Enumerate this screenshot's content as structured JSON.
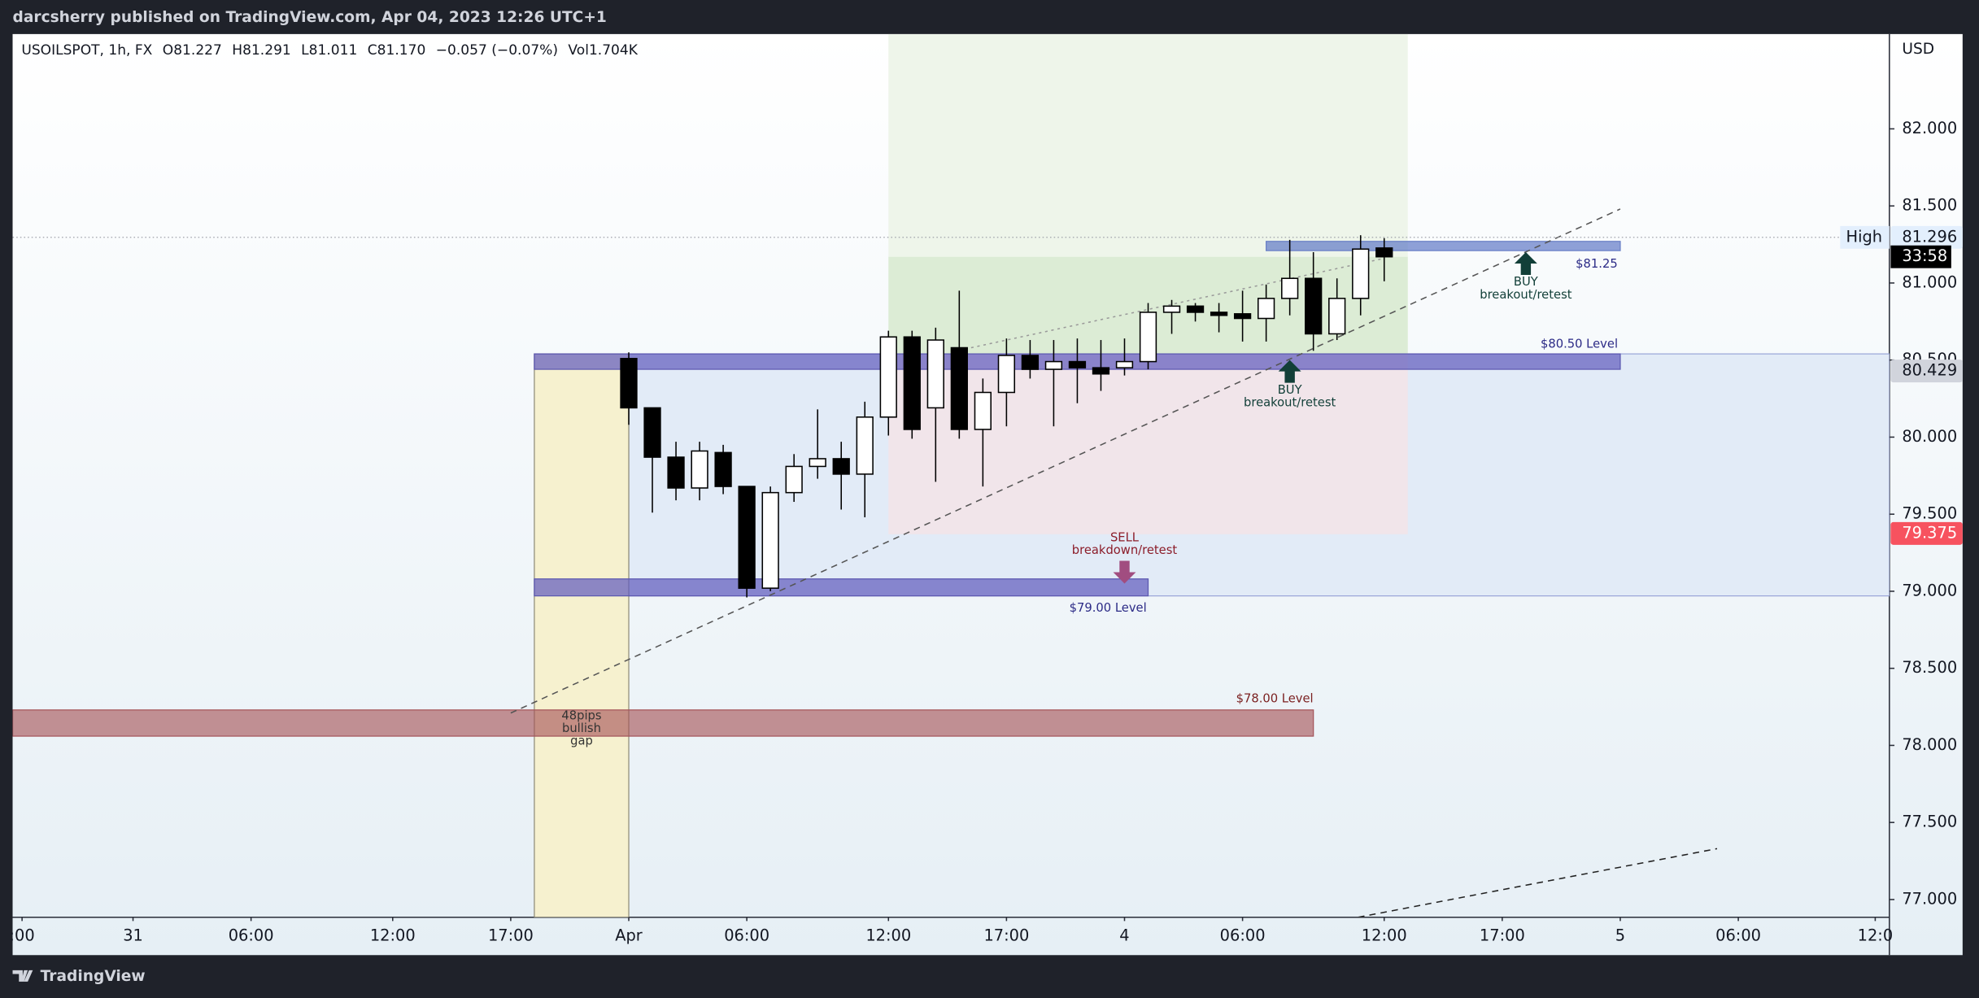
{
  "header": {
    "publisher": "darcsherry published on TradingView.com, Apr 04, 2023 12:26 UTC+1",
    "brand": "TradingView"
  },
  "chart_data": {
    "type": "candlestick",
    "symbol": "USOILSPOT, 1h, FX",
    "legend": [
      "O81.227",
      "H81.291",
      "L81.011",
      "C81.170",
      "−0.057 (−0.07%)",
      "Vol1.704K"
    ],
    "currency": "USD",
    "x": [
      0,
      1,
      2,
      3,
      4,
      5,
      6,
      7,
      8,
      9,
      10,
      11,
      12,
      13,
      14,
      15,
      16,
      17,
      18,
      19,
      20,
      21,
      22,
      23,
      24,
      25,
      26,
      27,
      28,
      29,
      30,
      31,
      32
    ],
    "open": [
      80.51,
      80.19,
      79.87,
      79.67,
      79.9,
      79.68,
      79.02,
      79.64,
      79.81,
      79.86,
      79.76,
      80.13,
      80.65,
      80.19,
      80.58,
      80.05,
      80.29,
      80.53,
      80.44,
      80.49,
      80.45,
      80.45,
      80.49,
      80.81,
      80.85,
      80.81,
      80.8,
      80.77,
      80.9,
      81.03,
      80.67,
      80.9,
      81.227
    ],
    "high": [
      80.55,
      80.19,
      79.97,
      79.97,
      79.95,
      79.68,
      79.68,
      79.89,
      80.18,
      79.97,
      80.23,
      80.69,
      80.69,
      80.71,
      80.95,
      80.38,
      80.64,
      80.63,
      80.63,
      80.64,
      80.63,
      80.64,
      80.87,
      80.89,
      80.87,
      80.87,
      80.95,
      80.99,
      81.28,
      81.2,
      81.03,
      81.31,
      81.291
    ],
    "low": [
      80.08,
      79.51,
      79.59,
      79.59,
      79.63,
      78.96,
      79.0,
      79.58,
      79.73,
      79.53,
      79.48,
      80.01,
      79.99,
      79.71,
      79.99,
      79.68,
      80.07,
      80.38,
      80.07,
      80.22,
      80.3,
      80.4,
      80.44,
      80.67,
      80.75,
      80.68,
      80.62,
      80.62,
      80.79,
      80.56,
      80.63,
      80.79,
      81.011
    ],
    "close": [
      80.19,
      79.87,
      79.67,
      79.91,
      79.68,
      79.02,
      79.64,
      79.81,
      79.86,
      79.76,
      80.13,
      80.65,
      80.05,
      80.63,
      80.05,
      80.29,
      80.53,
      80.44,
      80.49,
      80.45,
      80.41,
      80.49,
      80.81,
      80.85,
      80.81,
      80.79,
      80.77,
      80.9,
      81.03,
      80.67,
      80.9,
      81.22,
      81.17
    ],
    "up_color": "#ffffff",
    "down_color": "#000000",
    "wick_color": "#000000",
    "xlim": [
      -26.1,
      53.4
    ],
    "xticks": [
      {
        "value": -25.7,
        "label": ":00"
      },
      {
        "value": -21,
        "label": "31"
      },
      {
        "value": -16,
        "label": "06:00"
      },
      {
        "value": -10,
        "label": "12:00"
      },
      {
        "value": -5,
        "label": "17:00"
      },
      {
        "value": 0,
        "label": "Apr"
      },
      {
        "value": 5,
        "label": "06:00"
      },
      {
        "value": 11,
        "label": "12:00"
      },
      {
        "value": 16,
        "label": "17:00"
      },
      {
        "value": 21,
        "label": "4"
      },
      {
        "value": 26,
        "label": "06:00"
      },
      {
        "value": 32,
        "label": "12:00"
      },
      {
        "value": 37,
        "label": "17:00"
      },
      {
        "value": 42,
        "label": "5"
      },
      {
        "value": 47,
        "label": "06:00"
      },
      {
        "value": 52.8,
        "label": "12:0"
      }
    ],
    "ylim": [
      76.885,
      82.615
    ],
    "yticks": [
      {
        "value": 77,
        "label": "77.000"
      },
      {
        "value": 77.5,
        "label": "77.500"
      },
      {
        "value": 78,
        "label": "78.000"
      },
      {
        "value": 78.5,
        "label": "78.500"
      },
      {
        "value": 79,
        "label": "79.000"
      },
      {
        "value": 79.5,
        "label": "79.500"
      },
      {
        "value": 80,
        "label": "80.000"
      },
      {
        "value": 80.5,
        "label": "80.500"
      },
      {
        "value": 81,
        "label": "81.000"
      },
      {
        "value": 81.5,
        "label": "81.500"
      },
      {
        "value": 82,
        "label": "82.000"
      }
    ],
    "grid": false,
    "zones": [
      {
        "x": [
          0,
          53.4
        ],
        "y": [
          78.97,
          80.54
        ],
        "color": "#e2ebf7",
        "stroke": "#9ba6d9"
      },
      {
        "x": [
          -4,
          0
        ],
        "y": [
          76.885,
          80.54
        ],
        "color": "#f6f1cf",
        "stroke": "#8f8c78"
      },
      {
        "x": [
          11,
          33
        ],
        "y": [
          81.17,
          82.615
        ],
        "color": "#eef5ea",
        "stroke": "none"
      },
      {
        "x": [
          11,
          33
        ],
        "y": [
          80.54,
          81.17
        ],
        "color": "#dcecd5",
        "stroke": "none"
      },
      {
        "x": [
          11,
          33
        ],
        "y": [
          79.37,
          80.54
        ],
        "color": "#f1e5ea",
        "stroke": "none"
      },
      {
        "x": [
          -4,
          42
        ],
        "y": [
          80.44,
          80.54
        ],
        "color": "rgba(98,93,190,0.72)",
        "stroke": "#5c58b0"
      },
      {
        "x": [
          -4,
          22
        ],
        "y": [
          78.97,
          79.08
        ],
        "color": "rgba(98,93,190,0.72)",
        "stroke": "#5c58b0"
      },
      {
        "x": [
          -26.1,
          29
        ],
        "y": [
          78.06,
          78.23
        ],
        "color": "rgba(165,80,85,0.62)",
        "stroke": "#a5565b"
      },
      {
        "x": [
          27,
          42
        ],
        "y": [
          81.21,
          81.27
        ],
        "color": "rgba(100,125,200,0.72)",
        "stroke": "#6a80c6"
      }
    ],
    "lines": [
      {
        "x": [
          -5,
          42
        ],
        "y": [
          78.21,
          81.48
        ],
        "style": "dashed",
        "color": "#555555"
      },
      {
        "x": [
          30.9,
          46.1
        ],
        "y": [
          76.885,
          77.33
        ],
        "style": "dashed",
        "color": "#222222"
      },
      {
        "x": [
          14.5,
          32
        ],
        "y": [
          80.58,
          81.16
        ],
        "style": "dotted",
        "color": "#9a9a9a"
      }
    ],
    "annotations": [
      {
        "lines": [
          "BUY",
          "breakout/retest"
        ],
        "x": 28,
        "y": 80.5,
        "arrow": "up",
        "arrow_color": "#123f38",
        "color": "#123f38",
        "anchor": "middle"
      },
      {
        "lines": [
          "BUY",
          "breakout/retest"
        ],
        "x": 38,
        "y": 81.2,
        "arrow": "up",
        "arrow_color": "#123f38",
        "color": "#123f38",
        "anchor": "middle"
      },
      {
        "lines": [
          "SELL",
          "breakdown/retest"
        ],
        "x": 21,
        "y": 79.05,
        "arrow": "down",
        "arrow_color": "#a14d80",
        "color": "#8c1d2a",
        "anchor": "middle"
      },
      {
        "lines": [
          "$80.50 Level"
        ],
        "x": 41.9,
        "y": 80.6,
        "anchor": "end",
        "color": "#2b2a86"
      },
      {
        "lines": [
          "$79.00 Level"
        ],
        "x": 20.3,
        "y": 78.89,
        "anchor": "middle",
        "color": "#2b2a86"
      },
      {
        "lines": [
          "$78.00 Level"
        ],
        "x": 29,
        "y": 78.3,
        "anchor": "end",
        "color": "#7a1f1f"
      },
      {
        "lines": [
          "$81.25"
        ],
        "x": 41,
        "y": 81.12,
        "anchor": "middle",
        "color": "#2b2a86"
      },
      {
        "lines": [
          "48pips",
          "bullish",
          "gap"
        ],
        "x": -2,
        "y": 78.19,
        "anchor": "middle",
        "color": "#333333"
      }
    ],
    "price_labels": [
      {
        "value": 81.296,
        "label": "81.296",
        "tag": "High",
        "color": "#e3effd",
        "text_color": "#131722",
        "line": true
      },
      {
        "value": 80.429,
        "label": "80.429",
        "color": "#d1d4dc",
        "text_color": "#131722"
      },
      {
        "value": 79.375,
        "label": "79.375",
        "color": "#f7525f",
        "text_color": "#ffffff"
      }
    ],
    "countdown": {
      "text": "33:58",
      "value": 81.17
    }
  }
}
